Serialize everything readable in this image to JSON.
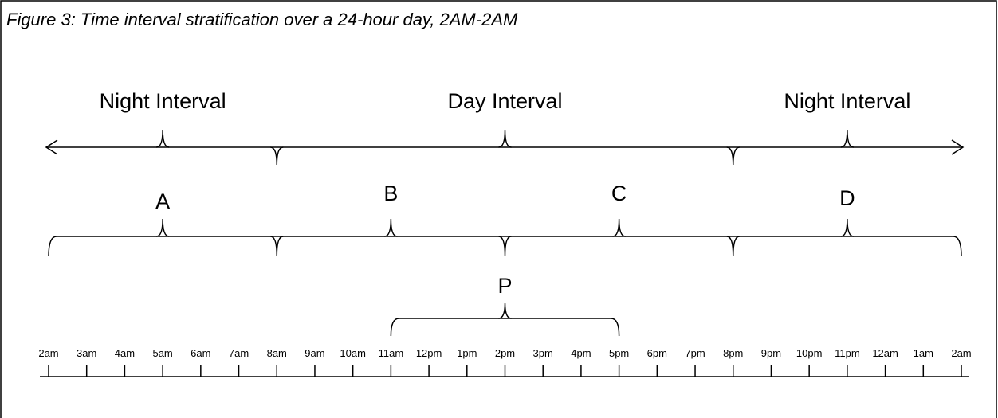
{
  "title": "Figure 3:  Time interval stratification over a 24-hour day, 2AM-2AM",
  "intervals": [
    "Night Interval",
    "Day Interval",
    "Night Interval"
  ],
  "segments": [
    "A",
    "B",
    "C",
    "D"
  ],
  "period": "P",
  "times": [
    "2am",
    "3am",
    "4am",
    "5am",
    "6am",
    "7am",
    "8am",
    "9am",
    "10am",
    "11am",
    "12pm",
    "1pm",
    "2pm",
    "3pm",
    "4pm",
    "5pm",
    "6pm",
    "7pm",
    "8pm",
    "9pm",
    "10pm",
    "11pm",
    "12am",
    "1am",
    "2am"
  ]
}
